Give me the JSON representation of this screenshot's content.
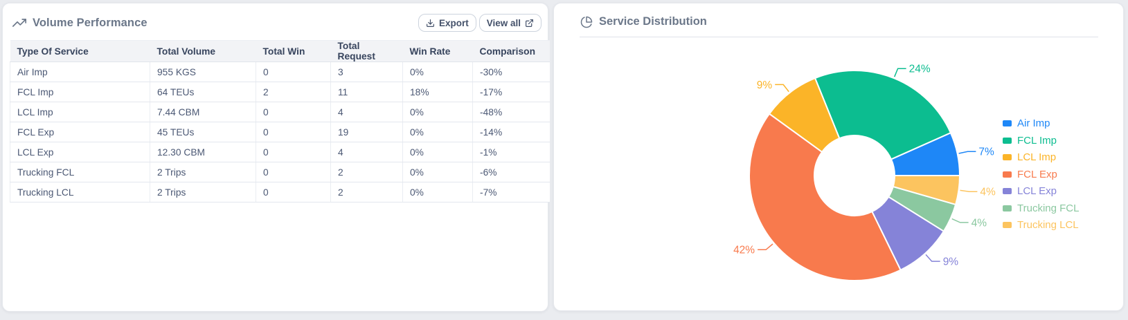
{
  "page": {
    "background": "#eaecf0"
  },
  "volume_card": {
    "title": "Volume Performance",
    "title_icon": "trending-up-icon",
    "export_label": "Export",
    "export_icon": "download-icon",
    "view_all_label": "View all",
    "view_all_icon": "external-link-icon",
    "table": {
      "columns": [
        "Type Of Service",
        "Total Volume",
        "Total Win",
        "Total Request",
        "Win Rate",
        "Comparison"
      ],
      "rows": [
        [
          "Air Imp",
          "955 KGS",
          "0",
          "3",
          "0%",
          "-30%"
        ],
        [
          "FCL Imp",
          "64 TEUs",
          "2",
          "11",
          "18%",
          "-17%"
        ],
        [
          "LCL Imp",
          "7.44 CBM",
          "0",
          "4",
          "0%",
          "-48%"
        ],
        [
          "FCL Exp",
          "45 TEUs",
          "0",
          "19",
          "0%",
          "-14%"
        ],
        [
          "LCL Exp",
          "12.30 CBM",
          "0",
          "4",
          "0%",
          "-1%"
        ],
        [
          "Trucking FCL",
          "2 Trips",
          "0",
          "2",
          "0%",
          "-6%"
        ],
        [
          "Trucking LCL",
          "2 Trips",
          "0",
          "2",
          "0%",
          "-7%"
        ]
      ]
    }
  },
  "distribution_card": {
    "title": "Service Distribution",
    "title_icon": "pie-chart-icon"
  },
  "chart_data": {
    "type": "pie",
    "title": "Service Distribution",
    "donut": true,
    "inner_radius_px": 58,
    "outer_radius_px": 152,
    "direction": "counterclockwise-from-3-oclock",
    "legend_position": "right",
    "series": [
      {
        "name": "Air Imp",
        "value": 3,
        "percent_label": "7%",
        "color": "#1e87f7"
      },
      {
        "name": "FCL Imp",
        "value": 11,
        "percent_label": "24%",
        "color": "#0cbd90"
      },
      {
        "name": "LCL Imp",
        "value": 4,
        "percent_label": "9%",
        "color": "#fbb428"
      },
      {
        "name": "FCL Exp",
        "value": 19,
        "percent_label": "42%",
        "color": "#f87a4d"
      },
      {
        "name": "LCL Exp",
        "value": 4,
        "percent_label": "9%",
        "color": "#8583d8"
      },
      {
        "name": "Trucking FCL",
        "value": 2,
        "percent_label": "4%",
        "color": "#8bc8a0"
      },
      {
        "name": "Trucking LCL",
        "value": 2,
        "percent_label": "4%",
        "color": "#fcc45f"
      }
    ]
  }
}
